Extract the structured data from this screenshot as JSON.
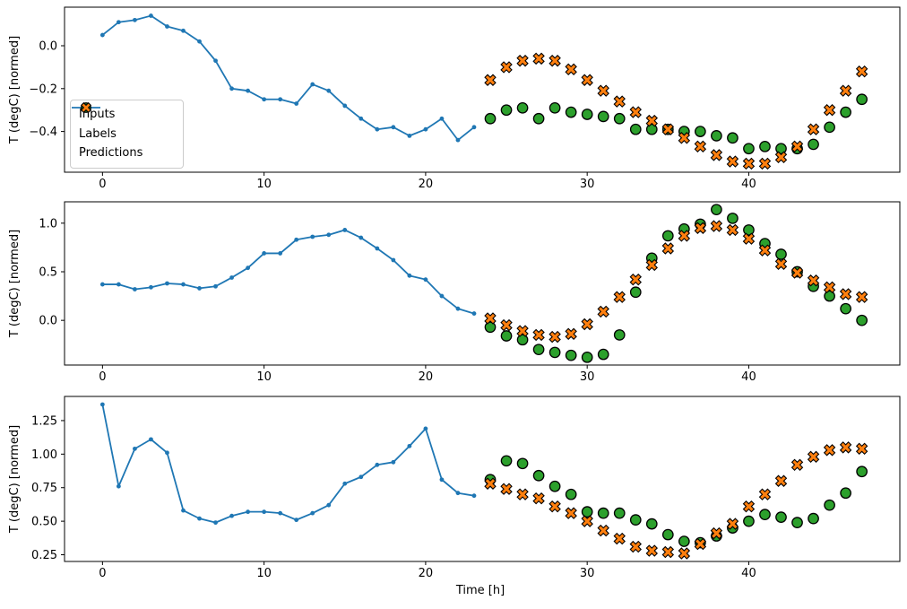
{
  "figure": {
    "xlabel": "Time [h]",
    "ylabel": "T (degC) [normed]",
    "background": "#ffffff",
    "spine_color": "#000000"
  },
  "legend": {
    "location": "center-left-of-top-subplot",
    "items": [
      {
        "label": "Inputs",
        "marker": "line-with-dot",
        "color": "#1f77b4"
      },
      {
        "label": "Labels",
        "marker": "circle",
        "color": "#2ca02c"
      },
      {
        "label": "Predictions",
        "marker": "thick-x",
        "color": "#ff7f0e"
      }
    ]
  },
  "chart_data": [
    {
      "type": "line",
      "title": "",
      "xlabel": "",
      "ylabel": "T (degC) [normed]",
      "xlim": [
        -2.35,
        49.35
      ],
      "ylim": [
        -0.59,
        0.18
      ],
      "xticks": [
        0,
        10,
        20,
        30,
        40
      ],
      "xtick_labels": [
        "0",
        "10",
        "20",
        "30",
        "40"
      ],
      "yticks": [
        0.0,
        -0.2,
        -0.4
      ],
      "ytick_labels": [
        "0.0",
        "−0.2",
        "−0.4"
      ],
      "grid": false,
      "legend_visible": true,
      "series": [
        {
          "name": "Inputs",
          "type": "line",
          "marker": "dot",
          "color": "#1f77b4",
          "x": [
            0,
            1,
            2,
            3,
            4,
            5,
            6,
            7,
            8,
            9,
            10,
            11,
            12,
            13,
            14,
            15,
            16,
            17,
            18,
            19,
            20,
            21,
            22,
            23
          ],
          "y": [
            0.05,
            0.11,
            0.12,
            0.14,
            0.09,
            0.07,
            0.02,
            -0.07,
            -0.2,
            -0.21,
            -0.25,
            -0.25,
            -0.27,
            -0.18,
            -0.21,
            -0.28,
            -0.34,
            -0.39,
            -0.38,
            -0.42,
            -0.39,
            -0.34,
            -0.44,
            -0.38
          ]
        },
        {
          "name": "Labels",
          "type": "scatter",
          "marker": "circle",
          "color": "#2ca02c",
          "edge_color": "#000000",
          "x": [
            24,
            25,
            26,
            27,
            28,
            29,
            30,
            31,
            32,
            33,
            34,
            35,
            36,
            37,
            38,
            39,
            40,
            41,
            42,
            43,
            44,
            45,
            46,
            47
          ],
          "y": [
            -0.34,
            -0.3,
            -0.29,
            -0.34,
            -0.29,
            -0.31,
            -0.32,
            -0.33,
            -0.34,
            -0.39,
            -0.39,
            -0.39,
            -0.4,
            -0.4,
            -0.42,
            -0.43,
            -0.48,
            -0.47,
            -0.48,
            -0.48,
            -0.46,
            -0.38,
            -0.31,
            -0.25
          ]
        },
        {
          "name": "Predictions",
          "type": "scatter",
          "marker": "X",
          "color": "#ff7f0e",
          "edge_color": "#000000",
          "x": [
            24,
            25,
            26,
            27,
            28,
            29,
            30,
            31,
            32,
            33,
            34,
            35,
            36,
            37,
            38,
            39,
            40,
            41,
            42,
            43,
            44,
            45,
            46,
            47
          ],
          "y": [
            -0.16,
            -0.1,
            -0.07,
            -0.06,
            -0.07,
            -0.11,
            -0.16,
            -0.21,
            -0.26,
            -0.31,
            -0.35,
            -0.39,
            -0.43,
            -0.47,
            -0.51,
            -0.54,
            -0.55,
            -0.55,
            -0.52,
            -0.47,
            -0.39,
            -0.3,
            -0.21,
            -0.12
          ]
        }
      ]
    },
    {
      "type": "line",
      "title": "",
      "xlabel": "",
      "ylabel": "T (degC) [normed]",
      "xlim": [
        -2.35,
        49.35
      ],
      "ylim": [
        -0.46,
        1.22
      ],
      "xticks": [
        0,
        10,
        20,
        30,
        40
      ],
      "xtick_labels": [
        "0",
        "10",
        "20",
        "30",
        "40"
      ],
      "yticks": [
        0.0,
        0.5,
        1.0
      ],
      "ytick_labels": [
        "0.0",
        "0.5",
        "1.0"
      ],
      "grid": false,
      "legend_visible": false,
      "series": [
        {
          "name": "Inputs",
          "type": "line",
          "marker": "dot",
          "color": "#1f77b4",
          "x": [
            0,
            1,
            2,
            3,
            4,
            5,
            6,
            7,
            8,
            9,
            10,
            11,
            12,
            13,
            14,
            15,
            16,
            17,
            18,
            19,
            20,
            21,
            22,
            23
          ],
          "y": [
            0.37,
            0.37,
            0.32,
            0.34,
            0.38,
            0.37,
            0.33,
            0.35,
            0.44,
            0.54,
            0.69,
            0.69,
            0.83,
            0.86,
            0.88,
            0.93,
            0.85,
            0.74,
            0.62,
            0.46,
            0.42,
            0.25,
            0.12,
            0.07
          ]
        },
        {
          "name": "Labels",
          "type": "scatter",
          "marker": "circle",
          "color": "#2ca02c",
          "edge_color": "#000000",
          "x": [
            24,
            25,
            26,
            27,
            28,
            29,
            30,
            31,
            32,
            33,
            34,
            35,
            36,
            37,
            38,
            39,
            40,
            41,
            42,
            43,
            44,
            45,
            46,
            47
          ],
          "y": [
            -0.07,
            -0.16,
            -0.2,
            -0.3,
            -0.33,
            -0.36,
            -0.38,
            -0.35,
            -0.15,
            0.29,
            0.64,
            0.87,
            0.94,
            0.99,
            1.14,
            1.05,
            0.93,
            0.79,
            0.68,
            0.5,
            0.35,
            0.25,
            0.12,
            0.0
          ]
        },
        {
          "name": "Predictions",
          "type": "scatter",
          "marker": "X",
          "color": "#ff7f0e",
          "edge_color": "#000000",
          "x": [
            24,
            25,
            26,
            27,
            28,
            29,
            30,
            31,
            32,
            33,
            34,
            35,
            36,
            37,
            38,
            39,
            40,
            41,
            42,
            43,
            44,
            45,
            46,
            47
          ],
          "y": [
            0.02,
            -0.05,
            -0.11,
            -0.15,
            -0.17,
            -0.14,
            -0.04,
            0.09,
            0.24,
            0.42,
            0.57,
            0.74,
            0.87,
            0.95,
            0.97,
            0.93,
            0.84,
            0.72,
            0.58,
            0.49,
            0.41,
            0.34,
            0.27,
            0.24
          ]
        }
      ]
    },
    {
      "type": "line",
      "title": "",
      "xlabel": "Time [h]",
      "ylabel": "T (degC) [normed]",
      "xlim": [
        -2.35,
        49.35
      ],
      "ylim": [
        0.2,
        1.43
      ],
      "xticks": [
        0,
        10,
        20,
        30,
        40
      ],
      "xtick_labels": [
        "0",
        "10",
        "20",
        "30",
        "40"
      ],
      "yticks": [
        0.25,
        0.5,
        0.75,
        1.0,
        1.25
      ],
      "ytick_labels": [
        "0.25",
        "0.50",
        "0.75",
        "1.00",
        "1.25"
      ],
      "grid": false,
      "legend_visible": false,
      "series": [
        {
          "name": "Inputs",
          "type": "line",
          "marker": "dot",
          "color": "#1f77b4",
          "x": [
            0,
            1,
            2,
            3,
            4,
            5,
            6,
            7,
            8,
            9,
            10,
            11,
            12,
            13,
            14,
            15,
            16,
            17,
            18,
            19,
            20,
            21,
            22,
            23
          ],
          "y": [
            1.37,
            0.76,
            1.04,
            1.11,
            1.01,
            0.58,
            0.52,
            0.49,
            0.54,
            0.57,
            0.57,
            0.56,
            0.51,
            0.56,
            0.62,
            0.78,
            0.83,
            0.92,
            0.94,
            1.06,
            1.19,
            0.81,
            0.71,
            0.69
          ]
        },
        {
          "name": "Labels",
          "type": "scatter",
          "marker": "circle",
          "color": "#2ca02c",
          "edge_color": "#000000",
          "x": [
            24,
            25,
            26,
            27,
            28,
            29,
            30,
            31,
            32,
            33,
            34,
            35,
            36,
            37,
            38,
            39,
            40,
            41,
            42,
            43,
            44,
            45,
            46,
            47
          ],
          "y": [
            0.81,
            0.95,
            0.93,
            0.84,
            0.76,
            0.7,
            0.57,
            0.56,
            0.56,
            0.51,
            0.48,
            0.4,
            0.35,
            0.34,
            0.39,
            0.45,
            0.5,
            0.55,
            0.53,
            0.49,
            0.52,
            0.62,
            0.71,
            0.87
          ]
        },
        {
          "name": "Predictions",
          "type": "scatter",
          "marker": "X",
          "color": "#ff7f0e",
          "edge_color": "#000000",
          "x": [
            24,
            25,
            26,
            27,
            28,
            29,
            30,
            31,
            32,
            33,
            34,
            35,
            36,
            37,
            38,
            39,
            40,
            41,
            42,
            43,
            44,
            45,
            46,
            47
          ],
          "y": [
            0.78,
            0.74,
            0.7,
            0.67,
            0.61,
            0.56,
            0.5,
            0.43,
            0.37,
            0.31,
            0.28,
            0.27,
            0.26,
            0.33,
            0.41,
            0.48,
            0.61,
            0.7,
            0.8,
            0.92,
            0.98,
            1.03,
            1.05,
            1.04
          ]
        }
      ]
    }
  ]
}
